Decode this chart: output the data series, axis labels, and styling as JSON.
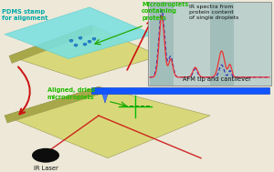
{
  "bg_color": "#ede8d8",
  "pdms_label": "PDMS stamp\nfor alignment",
  "pdms_label_color": "#00aaaa",
  "microdroplets_label": "Microdroplets\ncontaining\nprotein",
  "microdroplets_label_color": "#22bb00",
  "aligned_label": "Aligned, dried\nmicrodroplets",
  "aligned_label_color": "#22bb00",
  "afm_label": "AFM tip and cantilever",
  "afm_label_color": "#111111",
  "ir_laser_label": "IR Laser",
  "ir_laser_label_color": "#111111",
  "ir_spectra_label": "IR spectra from\nprotein content\nof single droplets",
  "ir_spectra_label_color": "#111111",
  "prism_top_color": "#cccb6e",
  "prism_left_color": "#a8a84a",
  "prism_right_color": "#d8d87a",
  "pdms_color": "#7ae0e0",
  "afm_bar_color": "#1155ff",
  "ir_laser_body_color": "#0d0d0d",
  "inset_bg": "#bdd0cc",
  "inset_band_color": "#9ab8b5",
  "spectrum1_color": "#ee3333",
  "spectrum2_color": "#3333bb",
  "arrow_color": "#cc1111",
  "green_arrow_color": "#22aa00"
}
